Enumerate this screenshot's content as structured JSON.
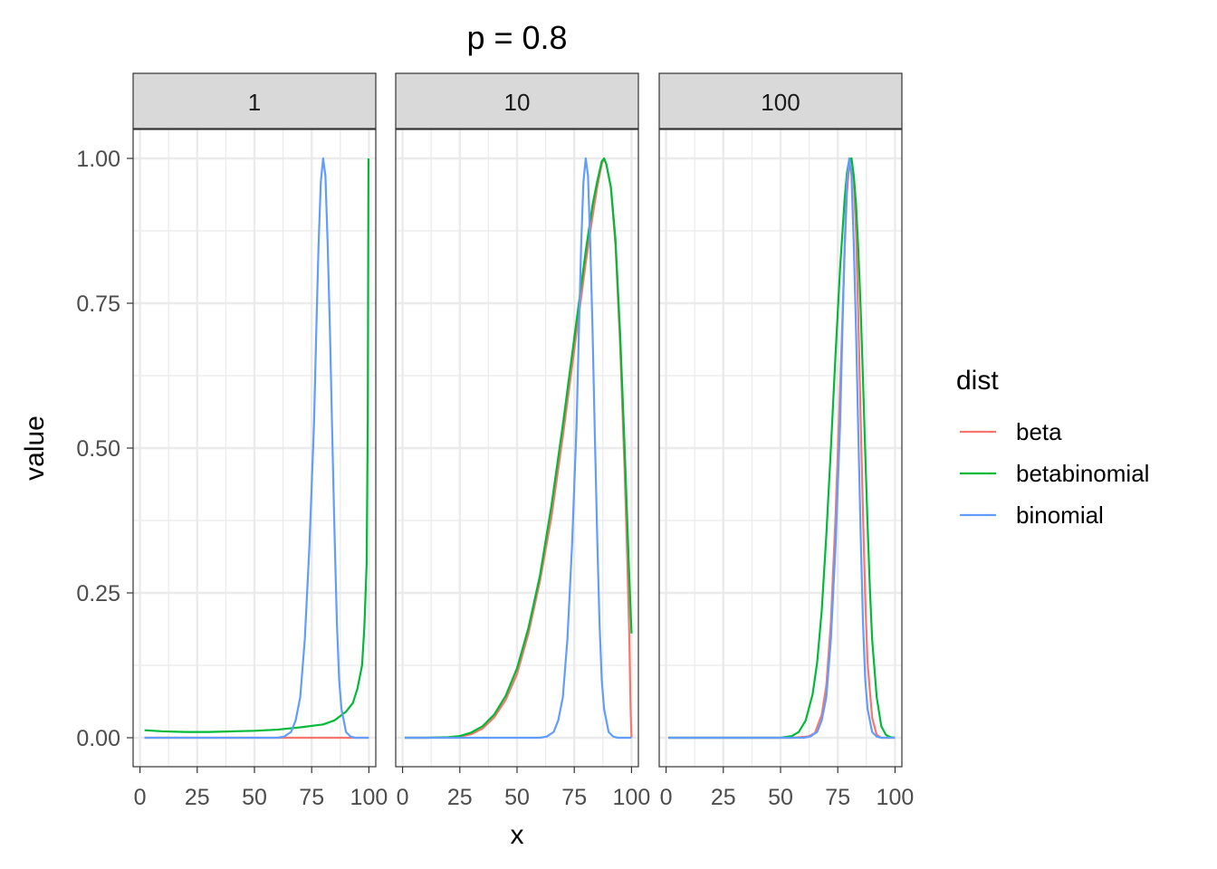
{
  "chart_data": {
    "type": "line",
    "title": "p = 0.8",
    "xlabel": "x",
    "ylabel": "value",
    "xlim": [
      -3,
      103
    ],
    "ylim": [
      -0.05,
      1.05
    ],
    "x_ticks": [
      "0",
      "25",
      "50",
      "75",
      "100"
    ],
    "y_ticks": [
      "0.00",
      "0.25",
      "0.50",
      "0.75",
      "1.00"
    ],
    "grid": true,
    "legend_position": "right",
    "legend": {
      "title": "dist",
      "entries": [
        "beta",
        "betabinomial",
        "binomial"
      ]
    },
    "colors": {
      "beta": "#F8766D",
      "betabinomial": "#00BA38",
      "binomial": "#619CFF",
      "strip_bg": "#D9D9D9",
      "grid": "#EBEBEB"
    },
    "panels": [
      {
        "label": "1",
        "series": [
          {
            "name": "beta",
            "points": [
              [
                2,
                0
              ],
              [
                20,
                0
              ],
              [
                50,
                0
              ],
              [
                70,
                0
              ],
              [
                80,
                0
              ],
              [
                90,
                0
              ],
              [
                94,
                0
              ],
              [
                97,
                0
              ],
              [
                99,
                0
              ],
              [
                99.8,
                0
              ]
            ]
          },
          {
            "name": "betabinomial",
            "points": [
              [
                2,
                0.013
              ],
              [
                10,
                0.011
              ],
              [
                20,
                0.01
              ],
              [
                30,
                0.01
              ],
              [
                40,
                0.011
              ],
              [
                50,
                0.012
              ],
              [
                60,
                0.014
              ],
              [
                70,
                0.018
              ],
              [
                80,
                0.023
              ],
              [
                85,
                0.03
              ],
              [
                90,
                0.045
              ],
              [
                93,
                0.06
              ],
              [
                95,
                0.085
              ],
              [
                97,
                0.125
              ],
              [
                98,
                0.19
              ],
              [
                99,
                0.3
              ],
              [
                99.5,
                0.55
              ],
              [
                99.8,
                1.0
              ]
            ]
          },
          {
            "name": "binomial",
            "points": [
              [
                2,
                0
              ],
              [
                60,
                0
              ],
              [
                63,
                0.002
              ],
              [
                66,
                0.01
              ],
              [
                68,
                0.03
              ],
              [
                70,
                0.07
              ],
              [
                72,
                0.17
              ],
              [
                74,
                0.33
              ],
              [
                76,
                0.54
              ],
              [
                77,
                0.7
              ],
              [
                78,
                0.85
              ],
              [
                79,
                0.96
              ],
              [
                80,
                1.0
              ],
              [
                81,
                0.97
              ],
              [
                82,
                0.85
              ],
              [
                83,
                0.7
              ],
              [
                84,
                0.52
              ],
              [
                85,
                0.35
              ],
              [
                86,
                0.2
              ],
              [
                87,
                0.1
              ],
              [
                88,
                0.05
              ],
              [
                90,
                0.01
              ],
              [
                92,
                0.002
              ],
              [
                94,
                0
              ],
              [
                100,
                0
              ]
            ]
          }
        ]
      },
      {
        "label": "10",
        "series": [
          {
            "name": "beta",
            "points": [
              [
                1,
                0
              ],
              [
                10,
                0
              ],
              [
                20,
                0.0005
              ],
              [
                25,
                0.002
              ],
              [
                30,
                0.006
              ],
              [
                35,
                0.016
              ],
              [
                40,
                0.035
              ],
              [
                45,
                0.065
              ],
              [
                50,
                0.11
              ],
              [
                55,
                0.18
              ],
              [
                60,
                0.27
              ],
              [
                65,
                0.38
              ],
              [
                70,
                0.52
              ],
              [
                75,
                0.67
              ],
              [
                80,
                0.82
              ],
              [
                83,
                0.9
              ],
              [
                85,
                0.95
              ],
              [
                87,
                0.99
              ],
              [
                88,
                1.0
              ],
              [
                89,
                0.99
              ],
              [
                91,
                0.95
              ],
              [
                93,
                0.85
              ],
              [
                95,
                0.68
              ],
              [
                97,
                0.46
              ],
              [
                98,
                0.33
              ],
              [
                99,
                0.18
              ],
              [
                99.6,
                0.05
              ],
              [
                100,
                0
              ]
            ]
          },
          {
            "name": "betabinomial",
            "points": [
              [
                1,
                0
              ],
              [
                10,
                0
              ],
              [
                20,
                0.001
              ],
              [
                25,
                0.003
              ],
              [
                30,
                0.009
              ],
              [
                35,
                0.02
              ],
              [
                40,
                0.04
              ],
              [
                45,
                0.072
              ],
              [
                50,
                0.12
              ],
              [
                55,
                0.19
              ],
              [
                60,
                0.28
              ],
              [
                65,
                0.4
              ],
              [
                70,
                0.54
              ],
              [
                75,
                0.69
              ],
              [
                80,
                0.84
              ],
              [
                83,
                0.92
              ],
              [
                85,
                0.96
              ],
              [
                87,
                0.995
              ],
              [
                88,
                1.0
              ],
              [
                89,
                0.99
              ],
              [
                91,
                0.95
              ],
              [
                93,
                0.86
              ],
              [
                95,
                0.7
              ],
              [
                97,
                0.5
              ],
              [
                98,
                0.39
              ],
              [
                99,
                0.28
              ],
              [
                100,
                0.18
              ]
            ]
          },
          {
            "name": "binomial",
            "points": [
              [
                1,
                0
              ],
              [
                60,
                0
              ],
              [
                63,
                0.002
              ],
              [
                66,
                0.01
              ],
              [
                68,
                0.03
              ],
              [
                70,
                0.07
              ],
              [
                72,
                0.17
              ],
              [
                74,
                0.33
              ],
              [
                76,
                0.54
              ],
              [
                77,
                0.7
              ],
              [
                78,
                0.85
              ],
              [
                79,
                0.96
              ],
              [
                80,
                1.0
              ],
              [
                81,
                0.97
              ],
              [
                82,
                0.85
              ],
              [
                83,
                0.7
              ],
              [
                84,
                0.52
              ],
              [
                85,
                0.35
              ],
              [
                86,
                0.2
              ],
              [
                87,
                0.1
              ],
              [
                88,
                0.05
              ],
              [
                90,
                0.01
              ],
              [
                92,
                0.002
              ],
              [
                94,
                0
              ],
              [
                100,
                0
              ]
            ]
          }
        ]
      },
      {
        "label": "100",
        "series": [
          {
            "name": "beta",
            "points": [
              [
                1,
                0
              ],
              [
                55,
                0
              ],
              [
                62,
                0.002
              ],
              [
                65,
                0.008
              ],
              [
                68,
                0.04
              ],
              [
                70,
                0.09
              ],
              [
                72,
                0.2
              ],
              [
                74,
                0.38
              ],
              [
                76,
                0.6
              ],
              [
                78,
                0.84
              ],
              [
                79,
                0.94
              ],
              [
                80,
                0.99
              ],
              [
                81,
                1.0
              ],
              [
                82,
                0.96
              ],
              [
                83,
                0.87
              ],
              [
                84,
                0.72
              ],
              [
                85,
                0.55
              ],
              [
                86,
                0.39
              ],
              [
                87,
                0.24
              ],
              [
                88,
                0.13
              ],
              [
                90,
                0.035
              ],
              [
                92,
                0.005
              ],
              [
                94,
                0
              ],
              [
                100,
                0
              ]
            ]
          },
          {
            "name": "betabinomial",
            "points": [
              [
                1,
                0
              ],
              [
                50,
                0
              ],
              [
                55,
                0.003
              ],
              [
                58,
                0.01
              ],
              [
                61,
                0.03
              ],
              [
                64,
                0.075
              ],
              [
                66,
                0.13
              ],
              [
                68,
                0.22
              ],
              [
                70,
                0.35
              ],
              [
                72,
                0.5
              ],
              [
                74,
                0.66
              ],
              [
                76,
                0.81
              ],
              [
                78,
                0.93
              ],
              [
                79,
                0.975
              ],
              [
                80,
                0.998
              ],
              [
                81,
                1.0
              ],
              [
                82,
                0.97
              ],
              [
                83,
                0.92
              ],
              [
                84,
                0.84
              ],
              [
                85,
                0.74
              ],
              [
                86,
                0.62
              ],
              [
                87,
                0.49
              ],
              [
                88,
                0.37
              ],
              [
                89,
                0.26
              ],
              [
                90,
                0.17
              ],
              [
                92,
                0.07
              ],
              [
                94,
                0.02
              ],
              [
                96,
                0.005
              ],
              [
                98,
                0.001
              ],
              [
                100,
                0
              ]
            ]
          },
          {
            "name": "binomial",
            "points": [
              [
                1,
                0
              ],
              [
                60,
                0
              ],
              [
                63,
                0.002
              ],
              [
                66,
                0.01
              ],
              [
                68,
                0.03
              ],
              [
                70,
                0.07
              ],
              [
                72,
                0.17
              ],
              [
                74,
                0.33
              ],
              [
                76,
                0.54
              ],
              [
                77,
                0.7
              ],
              [
                78,
                0.85
              ],
              [
                79,
                0.96
              ],
              [
                80,
                1.0
              ],
              [
                81,
                0.97
              ],
              [
                82,
                0.85
              ],
              [
                83,
                0.7
              ],
              [
                84,
                0.52
              ],
              [
                85,
                0.35
              ],
              [
                86,
                0.2
              ],
              [
                87,
                0.1
              ],
              [
                88,
                0.05
              ],
              [
                90,
                0.01
              ],
              [
                92,
                0.002
              ],
              [
                94,
                0
              ],
              [
                100,
                0
              ]
            ]
          }
        ]
      }
    ]
  }
}
